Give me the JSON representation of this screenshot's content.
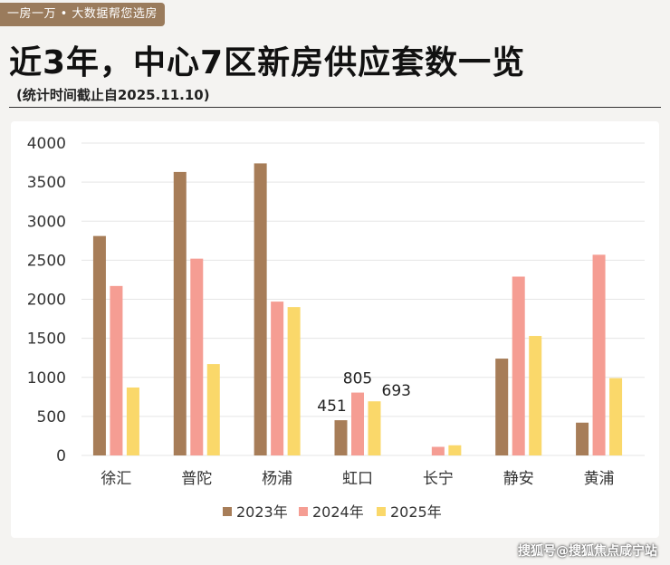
{
  "header": {
    "tag": "一房一万 • 大数据帮您选房",
    "title": "近3年，中心7区新房供应套数一览",
    "subtitle": "(统计时间截止自2025.11.10)"
  },
  "footer": {
    "watermark": "搜狐号@搜狐焦点咸宁站"
  },
  "colors": {
    "s2023": "#a77d58",
    "s2024": "#f59d93",
    "s2025": "#fad86a",
    "grid": "#e5e5e5",
    "axis_text": "#333333"
  },
  "chart_data": {
    "type": "bar",
    "title": "近3年，中心7区新房供应套数一览",
    "xlabel": "",
    "ylabel": "",
    "ylim": [
      0,
      4000
    ],
    "yticks": [
      "0",
      "500",
      "1000",
      "1500",
      "2000",
      "2500",
      "3000",
      "3500",
      "4000"
    ],
    "grid": true,
    "legend": "bottom-center",
    "categories": [
      "徐汇",
      "普陀",
      "杨浦",
      "虹口",
      "长宁",
      "静安",
      "黄浦"
    ],
    "series": [
      {
        "name": "2023年",
        "values": [
          2810,
          3630,
          3740,
          451,
          0,
          1240,
          420
        ]
      },
      {
        "name": "2024年",
        "values": [
          2170,
          2520,
          1970,
          805,
          110,
          2290,
          2570
        ]
      },
      {
        "name": "2025年",
        "values": [
          870,
          1170,
          1900,
          693,
          130,
          1530,
          990
        ]
      }
    ],
    "data_labels": [
      {
        "category": "虹口",
        "series": "2023年",
        "text": "451"
      },
      {
        "category": "虹口",
        "series": "2024年",
        "text": "805"
      },
      {
        "category": "虹口",
        "series": "2025年",
        "text": "693"
      }
    ]
  }
}
